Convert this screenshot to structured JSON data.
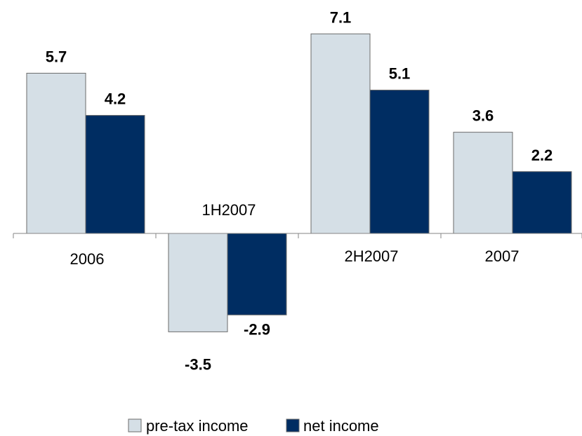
{
  "chart_data": {
    "type": "bar",
    "categories": [
      "2006",
      "1H2007",
      "2H2007",
      "2007"
    ],
    "series": [
      {
        "name": "pre-tax income",
        "values": [
          5.7,
          -3.5,
          7.1,
          3.6
        ]
      },
      {
        "name": "net income",
        "values": [
          4.2,
          -2.9,
          5.1,
          2.2
        ]
      }
    ],
    "value_labels": [
      [
        "5.7",
        "-3.5",
        "7.1",
        "3.6"
      ],
      [
        "4.2",
        "-2.9",
        "5.1",
        "2.2"
      ]
    ],
    "legend_position": "bottom",
    "grid": false,
    "ylim": [
      -3.5,
      7.1
    ]
  },
  "colors": {
    "pre_tax": "#d5dfe6",
    "net": "#002d62",
    "bar_stroke": "#6b6b6b",
    "axis": "#868686"
  }
}
